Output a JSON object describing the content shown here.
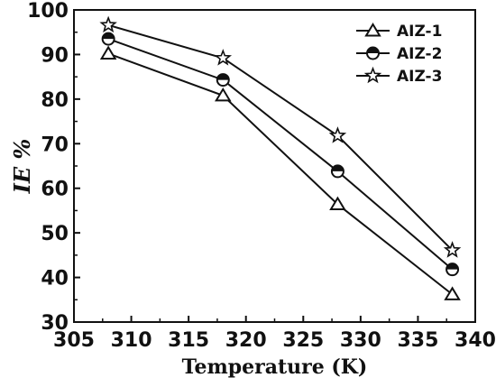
{
  "chart_data": {
    "type": "line",
    "xlabel": "Temperature (K)",
    "ylabel": "IE %",
    "xlim": [
      305,
      340
    ],
    "ylim": [
      30,
      100
    ],
    "xticks": [
      305,
      310,
      315,
      320,
      325,
      330,
      335,
      340
    ],
    "yticks": [
      30,
      40,
      50,
      60,
      70,
      80,
      90,
      100
    ],
    "grid": false,
    "legend_position": "top-right",
    "x": [
      308,
      318,
      328,
      338
    ],
    "series": [
      {
        "name": "AIZ-1",
        "marker": "triangle",
        "values": [
          90.2,
          80.8,
          56.4,
          36.2
        ]
      },
      {
        "name": "AIZ-2",
        "marker": "half-circle",
        "values": [
          93.5,
          84.3,
          63.8,
          41.8
        ]
      },
      {
        "name": "AIZ-3",
        "marker": "star",
        "values": [
          96.6,
          89.2,
          71.8,
          46.1
        ]
      }
    ]
  }
}
